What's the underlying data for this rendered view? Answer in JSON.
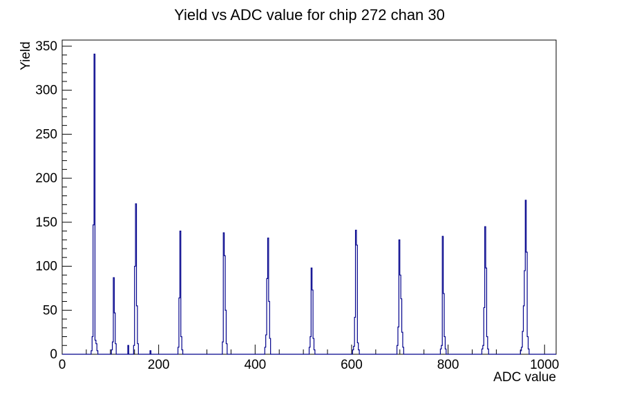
{
  "page": {
    "title": "Yield vs ADC value for chip 272 chan 30"
  },
  "chart_data": {
    "type": "bar",
    "subtype": "histogram-outline",
    "title": "Yield vs ADC value for chip 272 chan 30",
    "xlabel": "ADC value",
    "ylabel": "Yield",
    "xlim": [
      0,
      1024
    ],
    "ylim": [
      0,
      357
    ],
    "x_major_ticks": [
      0,
      200,
      400,
      600,
      800,
      1000
    ],
    "x_minor_step": 50,
    "y_major_ticks": [
      0,
      50,
      100,
      150,
      200,
      250,
      300,
      350
    ],
    "y_minor_step": 10,
    "grid": false,
    "legend": false,
    "bin_width": 2,
    "line_color": "#00008b",
    "axis_color": "#000000",
    "background_color": "#ffffff",
    "bins": [
      [
        60,
        4
      ],
      [
        62,
        20
      ],
      [
        64,
        147
      ],
      [
        66,
        341
      ],
      [
        68,
        16
      ],
      [
        70,
        12
      ],
      [
        72,
        4
      ],
      [
        102,
        5
      ],
      [
        104,
        14
      ],
      [
        106,
        87
      ],
      [
        108,
        47
      ],
      [
        110,
        12
      ],
      [
        136,
        10
      ],
      [
        148,
        10
      ],
      [
        150,
        100
      ],
      [
        152,
        171
      ],
      [
        154,
        55
      ],
      [
        156,
        12
      ],
      [
        182,
        4
      ],
      [
        240,
        8
      ],
      [
        242,
        64
      ],
      [
        244,
        140
      ],
      [
        246,
        20
      ],
      [
        248,
        5
      ],
      [
        332,
        14
      ],
      [
        334,
        138
      ],
      [
        336,
        112
      ],
      [
        338,
        50
      ],
      [
        340,
        12
      ],
      [
        420,
        8
      ],
      [
        422,
        22
      ],
      [
        424,
        86
      ],
      [
        426,
        132
      ],
      [
        428,
        60
      ],
      [
        430,
        18
      ],
      [
        512,
        8
      ],
      [
        514,
        20
      ],
      [
        516,
        98
      ],
      [
        518,
        73
      ],
      [
        520,
        18
      ],
      [
        522,
        5
      ],
      [
        602,
        5
      ],
      [
        604,
        9
      ],
      [
        606,
        42
      ],
      [
        608,
        141
      ],
      [
        610,
        124
      ],
      [
        612,
        13
      ],
      [
        614,
        5
      ],
      [
        694,
        10
      ],
      [
        696,
        31
      ],
      [
        698,
        130
      ],
      [
        700,
        90
      ],
      [
        702,
        63
      ],
      [
        704,
        25
      ],
      [
        706,
        8
      ],
      [
        784,
        6
      ],
      [
        786,
        10
      ],
      [
        788,
        134
      ],
      [
        790,
        69
      ],
      [
        792,
        20
      ],
      [
        794,
        6
      ],
      [
        870,
        6
      ],
      [
        872,
        10
      ],
      [
        874,
        53
      ],
      [
        876,
        145
      ],
      [
        878,
        98
      ],
      [
        880,
        20
      ],
      [
        882,
        6
      ],
      [
        950,
        4
      ],
      [
        952,
        8
      ],
      [
        954,
        26
      ],
      [
        956,
        55
      ],
      [
        958,
        95
      ],
      [
        960,
        175
      ],
      [
        962,
        116
      ],
      [
        964,
        20
      ],
      [
        966,
        6
      ]
    ]
  }
}
